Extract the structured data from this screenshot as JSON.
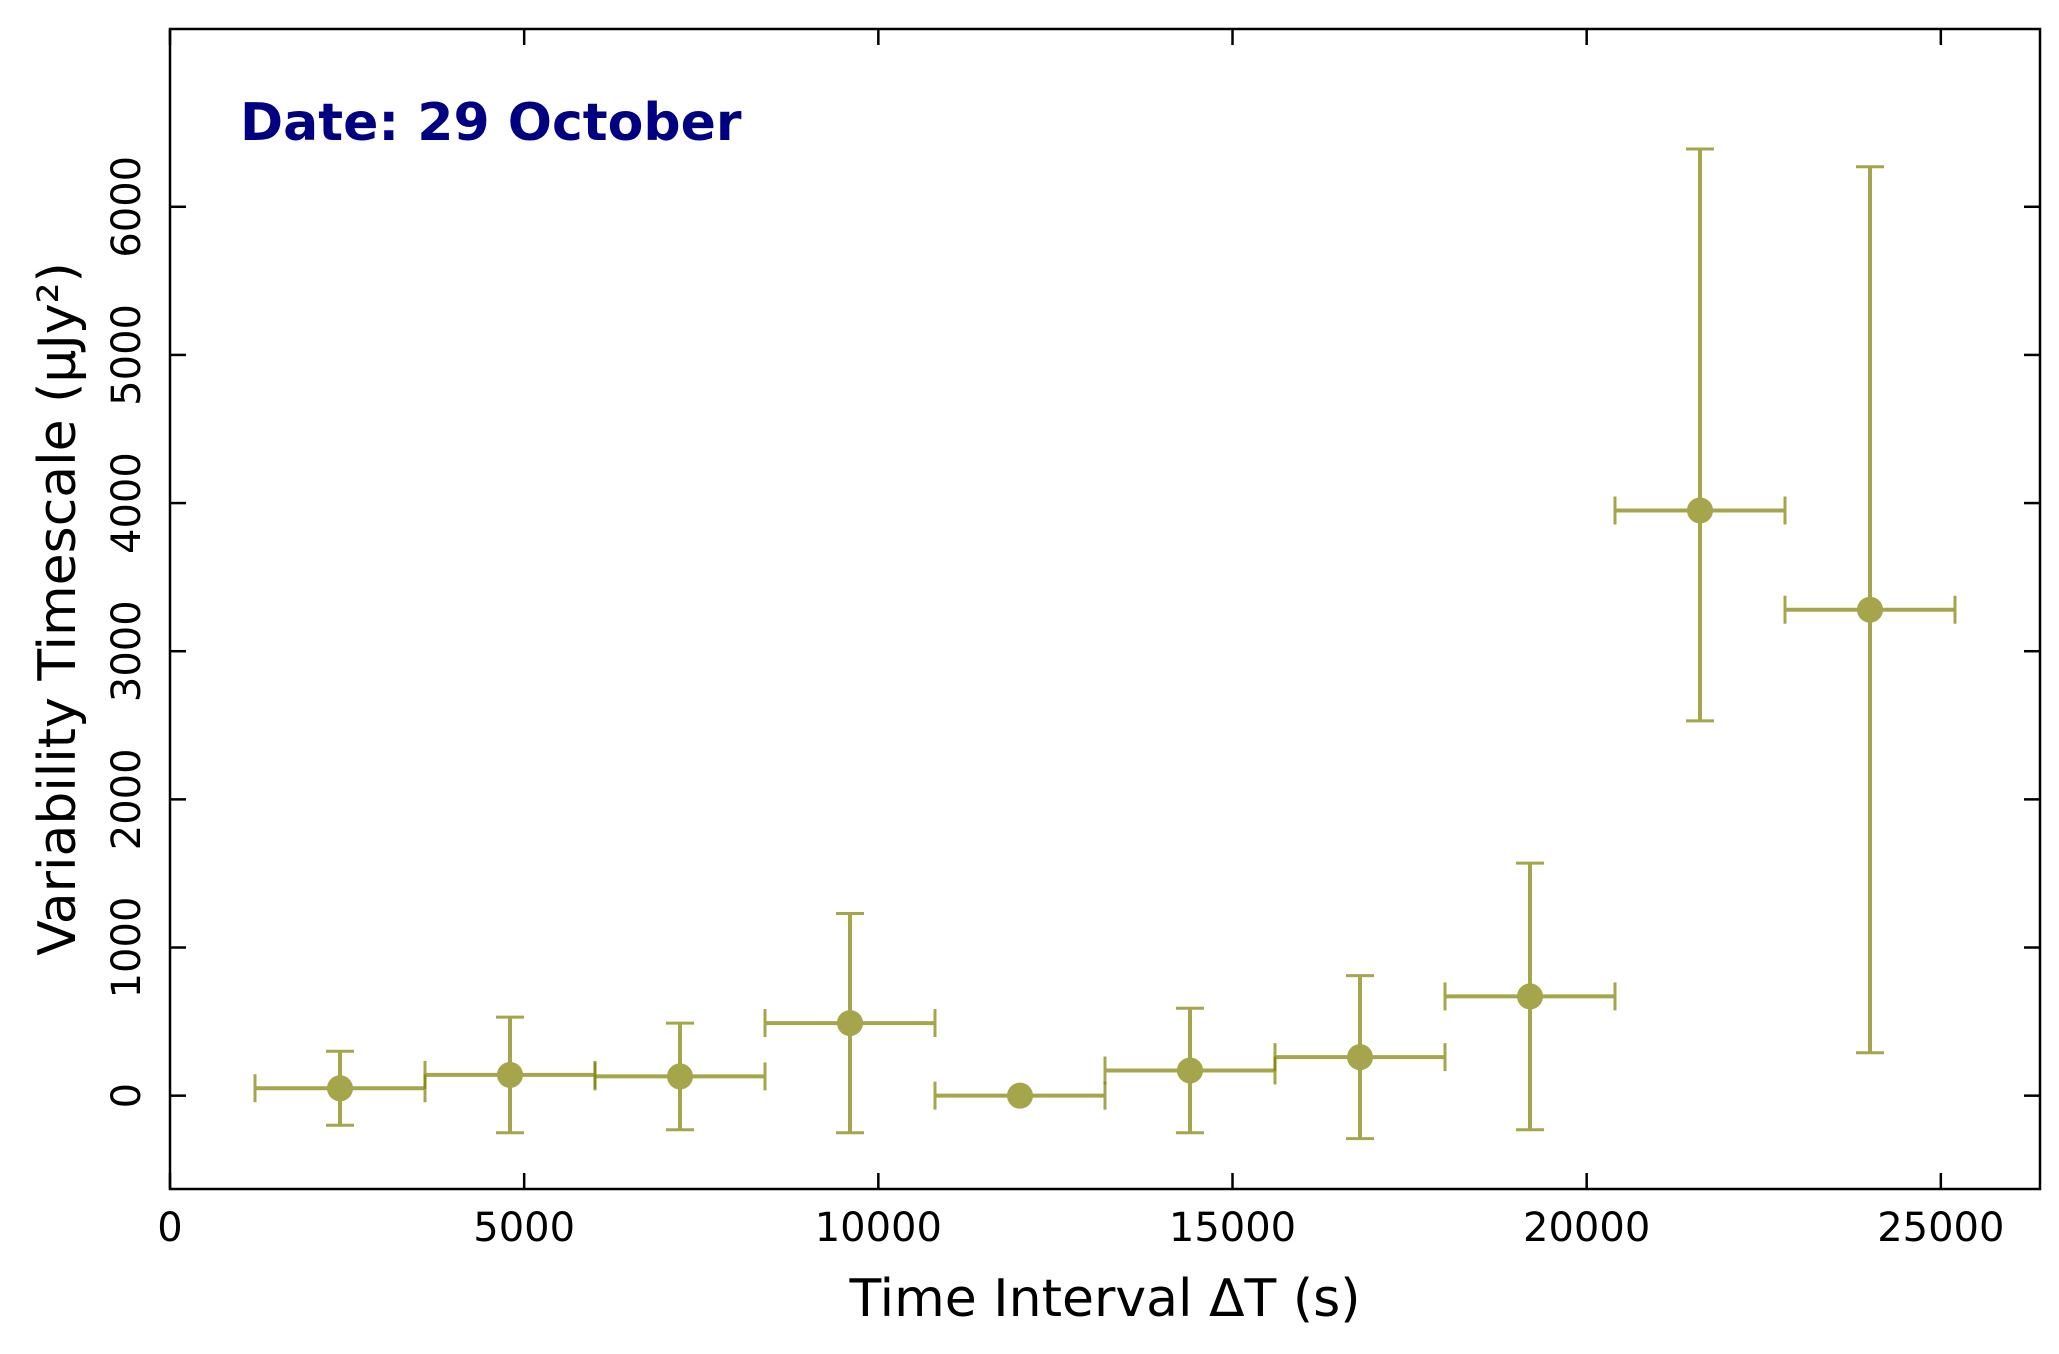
{
  "chart_data": {
    "type": "scatter",
    "title": "",
    "xlabel": "Time Interval ΔT (s)",
    "ylabel": "Variability Timescale (μJy²)",
    "xlim": [
      0,
      26400
    ],
    "ylim": [
      -630,
      7200
    ],
    "xticks": [
      0,
      5000,
      10000,
      15000,
      20000,
      25000
    ],
    "yticks": [
      0,
      1000,
      2000,
      3000,
      4000,
      5000,
      6000
    ],
    "xtick_labels": [
      "0",
      "5000",
      "10000",
      "15000",
      "20000",
      "25000"
    ],
    "ytick_labels": [
      "0",
      "1000",
      "2000",
      "3000",
      "4000",
      "5000",
      "6000"
    ],
    "grid": false,
    "marker_color": "#808000",
    "annotation": {
      "text": "Date: 29 October",
      "color": "#000080",
      "position": "top-left"
    },
    "points": [
      {
        "x": 2400,
        "y": 50,
        "x_err": 1200,
        "y_low": 250,
        "y_high": 250
      },
      {
        "x": 4800,
        "y": 140,
        "x_err": 1200,
        "y_low": 390,
        "y_high": 390
      },
      {
        "x": 7200,
        "y": 130,
        "x_err": 1200,
        "y_low": 360,
        "y_high": 360
      },
      {
        "x": 9600,
        "y": 490,
        "x_err": 1200,
        "y_low": 740,
        "y_high": 740
      },
      {
        "x": 12000,
        "y": 0,
        "x_err": 1200,
        "y_low": 0,
        "y_high": 0
      },
      {
        "x": 14400,
        "y": 170,
        "x_err": 1200,
        "y_low": 420,
        "y_high": 420
      },
      {
        "x": 16800,
        "y": 260,
        "x_err": 1200,
        "y_low": 550,
        "y_high": 550
      },
      {
        "x": 19200,
        "y": 670,
        "x_err": 1200,
        "y_low": 900,
        "y_high": 900
      },
      {
        "x": 21600,
        "y": 3950,
        "x_err": 1200,
        "y_low": 1420,
        "y_high": 2440
      },
      {
        "x": 24000,
        "y": 3280,
        "x_err": 1200,
        "y_low": 2990,
        "y_high": 2990
      }
    ]
  }
}
